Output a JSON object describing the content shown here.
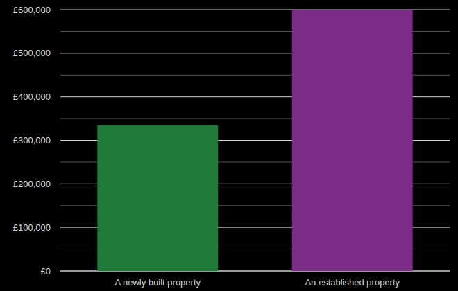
{
  "chart_data": {
    "type": "bar",
    "categories": [
      "A newly built property",
      "An established property"
    ],
    "values": [
      335000,
      600000
    ],
    "colors": [
      "#1e7a38",
      "#7b2d87"
    ],
    "ylim": [
      0,
      600000
    ],
    "yticks": [
      {
        "value": 0,
        "label": "£0"
      },
      {
        "value": 100000,
        "label": "£100,000"
      },
      {
        "value": 200000,
        "label": "£200,000"
      },
      {
        "value": 300000,
        "label": "£300,000"
      },
      {
        "value": 400000,
        "label": "£400,000"
      },
      {
        "value": 500000,
        "label": "£500,000"
      },
      {
        "value": 600000,
        "label": "£600,000"
      }
    ],
    "grid": true
  }
}
